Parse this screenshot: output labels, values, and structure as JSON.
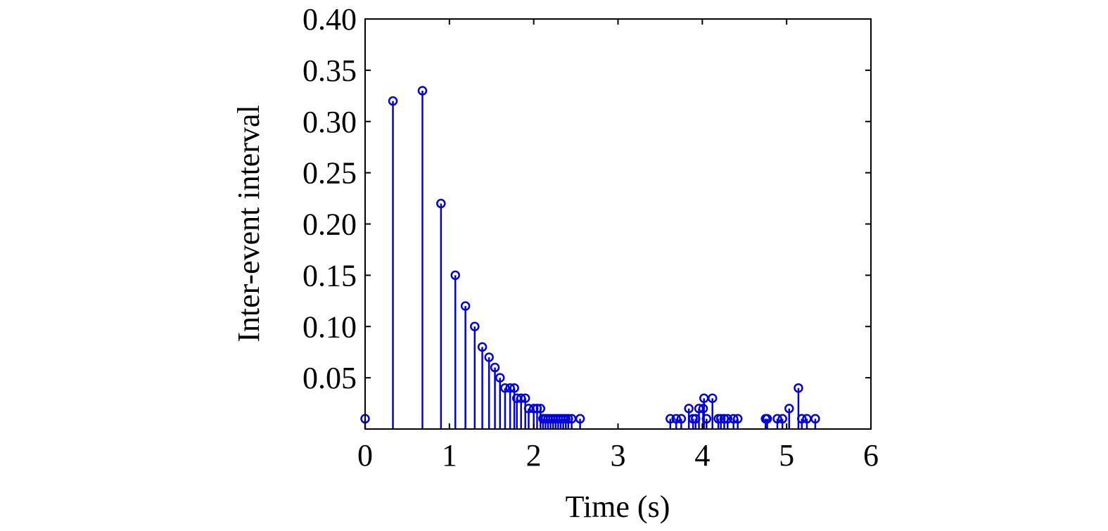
{
  "chart_data": {
    "type": "stem",
    "title": "",
    "xlabel": "Time (s)",
    "ylabel": "Inter-event interval",
    "xlim": [
      0,
      6
    ],
    "ylim": [
      0,
      0.4
    ],
    "xticks": [
      "0",
      "1",
      "2",
      "3",
      "4",
      "5",
      "6"
    ],
    "yticks": [
      "0.05",
      "0.10",
      "0.15",
      "0.20",
      "0.25",
      "0.30",
      "0.35",
      "0.40"
    ],
    "grid": false,
    "color": "#0000e0",
    "series": [
      {
        "name": "inter-event interval",
        "x": [
          0,
          0.33,
          0.68,
          0.9,
          1.07,
          1.19,
          1.3,
          1.39,
          1.47,
          1.54,
          1.6,
          1.66,
          1.72,
          1.77,
          1.8,
          1.85,
          1.9,
          1.94,
          2.0,
          2.04,
          2.08,
          2.11,
          2.14,
          2.17,
          2.2,
          2.23,
          2.26,
          2.29,
          2.32,
          2.35,
          2.38,
          2.41,
          2.45,
          2.55,
          3.62,
          3.69,
          3.75,
          3.84,
          3.89,
          3.92,
          3.96,
          4.01,
          4.02,
          4.05,
          4.12,
          4.19,
          4.22,
          4.26,
          4.3,
          4.37,
          4.42,
          4.75,
          4.77,
          4.89,
          4.95,
          5.03,
          5.14,
          5.18,
          5.24,
          5.34
        ],
        "y": [
          0.01,
          0.32,
          0.33,
          0.22,
          0.15,
          0.12,
          0.1,
          0.08,
          0.07,
          0.06,
          0.05,
          0.04,
          0.04,
          0.04,
          0.03,
          0.03,
          0.03,
          0.02,
          0.02,
          0.02,
          0.02,
          0.01,
          0.01,
          0.01,
          0.01,
          0.01,
          0.01,
          0.01,
          0.01,
          0.01,
          0.01,
          0.01,
          0.01,
          0.01,
          0.01,
          0.01,
          0.01,
          0.02,
          0.01,
          0.01,
          0.02,
          0.02,
          0.03,
          0.01,
          0.03,
          0.01,
          0.01,
          0.01,
          0.01,
          0.01,
          0.01,
          0.01,
          0.01,
          0.01,
          0.01,
          0.02,
          0.04,
          0.01,
          0.01,
          0.01
        ]
      }
    ]
  }
}
